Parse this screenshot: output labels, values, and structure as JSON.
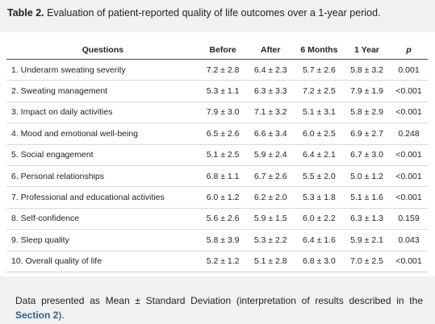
{
  "caption": {
    "label": "Table 2.",
    "text": " Evaluation of patient-reported quality of life outcomes over a 1-year period."
  },
  "table": {
    "headers": [
      "Questions",
      "Before",
      "After",
      "6 Months",
      "1 Year",
      "p"
    ],
    "rows": [
      [
        "1. Underarm sweating severity",
        "7.2 ± 2.8",
        "6.4 ± 2.3",
        "5.7 ± 2.6",
        "5.8 ± 3.2",
        "0.001"
      ],
      [
        "2. Sweating management",
        "5.3 ± 1.1",
        "6.3 ± 3.3",
        "7.2 ± 2.5",
        "7.9 ± 1.9",
        "<0.001"
      ],
      [
        "3. Impact on daily activities",
        "7.9 ± 3.0",
        "7.1 ± 3.2",
        "5.1 ± 3.1",
        "5.8 ± 2.9",
        "<0.001"
      ],
      [
        "4. Mood and emotional well-being",
        "6.5 ± 2.6",
        "6.6 ± 3.4",
        "6.0 ± 2.5",
        "6.9 ± 2.7",
        "0.248"
      ],
      [
        "5. Social engagement",
        "5.1 ± 2.5",
        "5.9 ± 2.4",
        "6.4 ± 2.1",
        "6.7 ± 3.0",
        "<0.001"
      ],
      [
        "6. Personal relationships",
        "6.8 ± 1.1",
        "6.7 ± 2.6",
        "5.5 ± 2.0",
        "5.0 ± 1.2",
        "<0.001"
      ],
      [
        "7. Professional and educational activities",
        "6.0 ± 1.2",
        "6.2 ± 2.0",
        "5.3 ± 1.8",
        "5.1 ± 1.6",
        "<0.001"
      ],
      [
        "8. Self-confidence",
        "5.6 ± 2.6",
        "5.9 ± 1.5",
        "6.0 ± 2.2",
        "6.3 ± 1.3",
        "0.159"
      ],
      [
        "9. Sleep quality",
        "5.8 ± 3.9",
        "5.3 ± 2.2",
        "6.4 ± 1.6",
        "5.9 ± 2.1",
        "0.043"
      ],
      [
        "10. Overall quality of life",
        "5.2 ± 1.2",
        "5.1 ± 2.8",
        "6.8 ± 3.0",
        "7.0 ± 2.5",
        "<0.001"
      ]
    ]
  },
  "footnote": {
    "text": "Data presented as Mean ± Standard Deviation (interpretation of results described in the ",
    "link_label": "Section 2",
    "suffix": ").",
    "link_color": "#2f5f8a"
  }
}
